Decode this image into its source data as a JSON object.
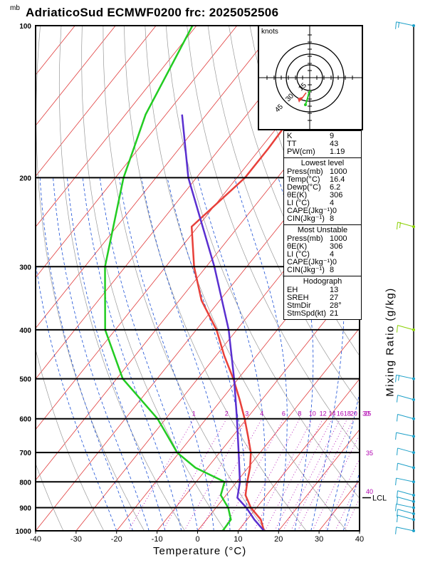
{
  "title": "AdriaticoSud ECMWF0200 frc: 2025052506",
  "pressure_unit": "mb",
  "x_axis_label": "Temperature (°C)",
  "mixing_ratio_label": "Mixing Ratio (g/kg)",
  "hodograph": {
    "unit": "knots",
    "ring_labels": [
      "15",
      "30",
      "45"
    ]
  },
  "indices": {
    "top": [
      {
        "label": "K",
        "value": "9"
      },
      {
        "label": "TT",
        "value": "43"
      },
      {
        "label": "PW(cm)",
        "value": "1.19"
      }
    ],
    "lowest_level": {
      "header": "Lowest level",
      "rows": [
        {
          "label": "Press(mb)",
          "value": "1000"
        },
        {
          "label": "Temp(°C)",
          "value": "16.4"
        },
        {
          "label": "Dewp(°C)",
          "value": "6.2"
        },
        {
          "label": "θE(K)",
          "value": "306"
        },
        {
          "label": "LI (°C)",
          "value": "4"
        },
        {
          "label": "CAPE(Jkg⁻¹)",
          "value": "0"
        },
        {
          "label": "CIN(Jkg⁻¹)",
          "value": "8"
        }
      ]
    },
    "most_unstable": {
      "header": "Most Unstable",
      "rows": [
        {
          "label": "Press(mb)",
          "value": "1000"
        },
        {
          "label": "θE(K)",
          "value": "306"
        },
        {
          "label": "LI (°C)",
          "value": "4"
        },
        {
          "label": "CAPE(Jkg⁻¹)",
          "value": "0"
        },
        {
          "label": "CIN(Jkg⁻¹)",
          "value": "8"
        }
      ]
    },
    "hodograph_box": {
      "header": "Hodograph",
      "rows": [
        {
          "label": "EH",
          "value": "13"
        },
        {
          "label": "SREH",
          "value": "27"
        },
        {
          "label": "StmDir",
          "value": "28°"
        },
        {
          "label": "StmSpd(kt)",
          "value": "21"
        }
      ]
    }
  },
  "colors": {
    "temperature": "#e8403a",
    "dewpoint": "#22cc22",
    "parcel": "#5a2fd0",
    "isotherm": "#e03a3a",
    "dry_adiabat": "#999999",
    "moist_adiabat": "#1a4fd6",
    "mixing_ratio": "#b000b0",
    "wind": "#1ea0c8"
  },
  "chart_data": {
    "type": "line",
    "title": "AdriaticoSud ECMWF0200 frc: 2025052506",
    "xlabel": "Temperature (°C)",
    "ylabel": "mb",
    "xlim": [
      -40,
      40
    ],
    "ylim": [
      1000,
      100
    ],
    "y_scale": "log",
    "x_ticks": [
      -40,
      -30,
      -20,
      -10,
      0,
      10,
      20,
      30,
      40
    ],
    "y_ticks": [
      100,
      200,
      300,
      400,
      500,
      600,
      700,
      800,
      900,
      1000
    ],
    "mixing_ratio_labels": [
      "1",
      "2",
      "3",
      "4",
      "6",
      "8",
      "10",
      "12",
      "14",
      "16",
      "18",
      "20",
      "25",
      "30",
      "35",
      "40"
    ],
    "lcl_label": "LCL",
    "lcl_pressure": 860,
    "series": [
      {
        "name": "Temperature",
        "pressure": [
          1000,
          950,
          900,
          850,
          800,
          750,
          700,
          650,
          600,
          550,
          500,
          450,
          400,
          350,
          300,
          250,
          200,
          175,
          150,
          125,
          100
        ],
        "temperature": [
          16.4,
          13.4,
          8.6,
          4.8,
          2.6,
          0.5,
          -2.3,
          -6.2,
          -10.5,
          -15.5,
          -21.2,
          -28.0,
          -35.0,
          -44.5,
          -53.0,
          -61.5,
          -58.0,
          -58.0,
          -58.5,
          -59.0,
          -60.0
        ]
      },
      {
        "name": "Dewpoint",
        "pressure": [
          1000,
          950,
          900,
          850,
          800,
          750,
          700,
          650,
          600,
          500,
          400,
          300,
          200,
          150,
          100
        ],
        "temperature": [
          6.2,
          6.0,
          3.0,
          -1.3,
          -3.0,
          -13.0,
          -20.5,
          -26.0,
          -32.0,
          -48.5,
          -62.5,
          -75.0,
          -88.0,
          -95.0,
          -101.0
        ]
      },
      {
        "name": "Parcel",
        "pressure": [
          1000,
          950,
          900,
          860,
          800,
          700,
          600,
          500,
          400,
          300,
          200,
          150
        ],
        "temperature": [
          16.4,
          11.8,
          7.5,
          3.3,
          0.8,
          -5.3,
          -12.4,
          -21.0,
          -32.0,
          -48.0,
          -72.0,
          -86.0
        ]
      }
    ],
    "wind_barbs_pressure": [
      1000,
      950,
      925,
      900,
      875,
      850,
      800,
      750,
      700,
      650,
      600,
      550,
      500,
      400,
      250,
      100
    ]
  }
}
